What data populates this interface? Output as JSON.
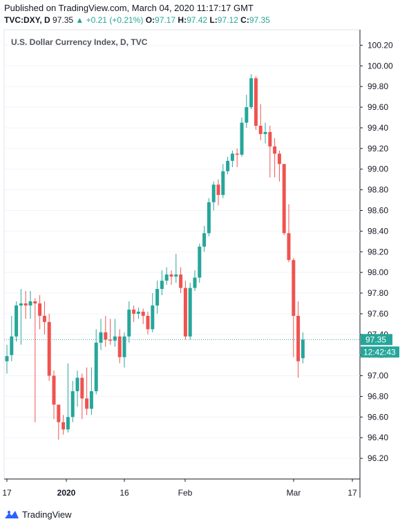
{
  "header": {
    "published": "Published on TradingView.com, March 04, 2020 11:17:17 GMT",
    "symbol": "TVC:DXY, D",
    "last": "97.35",
    "change": "▲ +0.21 (+0.21%)",
    "o_label": "O:",
    "o_value": "97.17",
    "h_label": "H:",
    "h_value": "97.42",
    "l_label": "L:",
    "l_value": "97.12",
    "c_label": "C:",
    "c_value": "97.35"
  },
  "chart_title": "U.S. Dollar Currency Index, D, TVC",
  "price_label": "97.35",
  "countdown_label": "12:42:43",
  "logo_text": "TradingView",
  "colors": {
    "up": "#26a69a",
    "down": "#ef5350",
    "axis": "#131722",
    "grid": "#f0f3fa"
  },
  "chart_data": {
    "type": "candlestick",
    "title": "U.S. Dollar Currency Index, D, TVC",
    "ylim": [
      96.0,
      100.35
    ],
    "y_ticks": [
      "96.20",
      "96.40",
      "96.60",
      "96.80",
      "97.00",
      "97.20",
      "97.40",
      "97.60",
      "97.80",
      "98.00",
      "98.20",
      "98.40",
      "98.60",
      "98.80",
      "99.00",
      "99.20",
      "99.40",
      "99.60",
      "99.80",
      "100.00",
      "100.20"
    ],
    "x_ticks": [
      "17",
      "2020",
      "16",
      "Feb",
      "Mar",
      "17"
    ],
    "last_price": 97.35,
    "candles": [
      [
        97.14,
        97.19,
        97.02,
        97.3
      ],
      [
        97.2,
        97.38,
        97.14,
        97.58
      ],
      [
        97.38,
        97.68,
        97.33,
        97.72
      ],
      [
        97.68,
        97.7,
        97.3,
        97.84
      ],
      [
        97.7,
        97.68,
        97.55,
        97.82
      ],
      [
        97.68,
        97.72,
        97.55,
        97.82
      ],
      [
        97.72,
        97.7,
        96.55,
        97.75
      ],
      [
        97.7,
        97.58,
        97.45,
        97.78
      ],
      [
        97.58,
        97.52,
        97.4,
        97.72
      ],
      [
        97.52,
        97.0,
        96.95,
        97.6
      ],
      [
        97.0,
        96.72,
        96.58,
        97.05
      ],
      [
        96.72,
        96.55,
        96.38,
        96.72
      ],
      [
        96.55,
        96.48,
        96.43,
        96.62
      ],
      [
        96.48,
        96.6,
        96.45,
        97.12
      ],
      [
        96.6,
        96.85,
        96.55,
        96.95
      ],
      [
        96.85,
        96.98,
        96.7,
        97.05
      ],
      [
        96.98,
        96.78,
        96.58,
        97.02
      ],
      [
        96.78,
        96.68,
        96.62,
        97.08
      ],
      [
        96.68,
        96.85,
        96.62,
        97.08
      ],
      [
        96.85,
        97.32,
        96.82,
        97.45
      ],
      [
        97.32,
        97.42,
        97.25,
        97.55
      ],
      [
        97.42,
        97.35,
        97.28,
        97.58
      ],
      [
        97.35,
        97.34,
        97.3,
        97.55
      ],
      [
        97.34,
        97.38,
        97.28,
        97.55
      ],
      [
        97.38,
        97.18,
        97.12,
        97.45
      ],
      [
        97.18,
        97.38,
        97.08,
        97.42
      ],
      [
        97.38,
        97.64,
        97.32,
        97.72
      ],
      [
        97.64,
        97.6,
        97.52,
        97.68
      ],
      [
        97.6,
        97.62,
        97.55,
        97.66
      ],
      [
        97.62,
        97.58,
        97.5,
        97.65
      ],
      [
        97.58,
        97.45,
        97.4,
        97.62
      ],
      [
        97.45,
        97.68,
        97.42,
        97.8
      ],
      [
        97.68,
        97.84,
        97.6,
        97.92
      ],
      [
        97.84,
        97.92,
        97.78,
        98.02
      ],
      [
        97.92,
        97.98,
        97.88,
        98.05
      ],
      [
        97.98,
        97.96,
        97.88,
        98.02
      ],
      [
        97.96,
        97.98,
        97.9,
        98.18
      ],
      [
        97.98,
        97.85,
        97.8,
        98.05
      ],
      [
        97.85,
        97.38,
        97.35,
        97.92
      ],
      [
        97.38,
        97.85,
        97.35,
        97.9
      ],
      [
        97.85,
        97.95,
        97.82,
        98.02
      ],
      [
        97.95,
        98.25,
        97.9,
        98.28
      ],
      [
        98.25,
        98.38,
        98.2,
        98.45
      ],
      [
        98.38,
        98.68,
        98.35,
        98.72
      ],
      [
        98.68,
        98.85,
        98.6,
        98.88
      ],
      [
        98.85,
        98.75,
        98.65,
        98.9
      ],
      [
        98.75,
        98.98,
        98.72,
        99.05
      ],
      [
        98.98,
        99.08,
        98.95,
        99.12
      ],
      [
        99.08,
        99.15,
        99.02,
        99.18
      ],
      [
        99.15,
        99.14,
        99.02,
        99.2
      ],
      [
        99.14,
        99.45,
        99.12,
        99.5
      ],
      [
        99.45,
        99.6,
        99.4,
        99.72
      ],
      [
        99.6,
        99.88,
        99.58,
        99.92
      ],
      [
        99.88,
        99.42,
        99.38,
        99.9
      ],
      [
        99.42,
        99.34,
        99.28,
        99.63
      ],
      [
        99.34,
        99.36,
        99.25,
        99.45
      ],
      [
        99.36,
        99.22,
        98.92,
        99.42
      ],
      [
        99.22,
        99.15,
        98.92,
        99.3
      ],
      [
        99.15,
        99.05,
        98.88,
        99.18
      ],
      [
        99.05,
        98.38,
        98.36,
        99.05
      ],
      [
        98.38,
        98.12,
        98.1,
        98.66
      ],
      [
        98.12,
        97.58,
        97.18,
        98.14
      ],
      [
        97.58,
        97.14,
        96.98,
        97.72
      ],
      [
        97.17,
        97.35,
        97.12,
        97.42
      ]
    ]
  }
}
